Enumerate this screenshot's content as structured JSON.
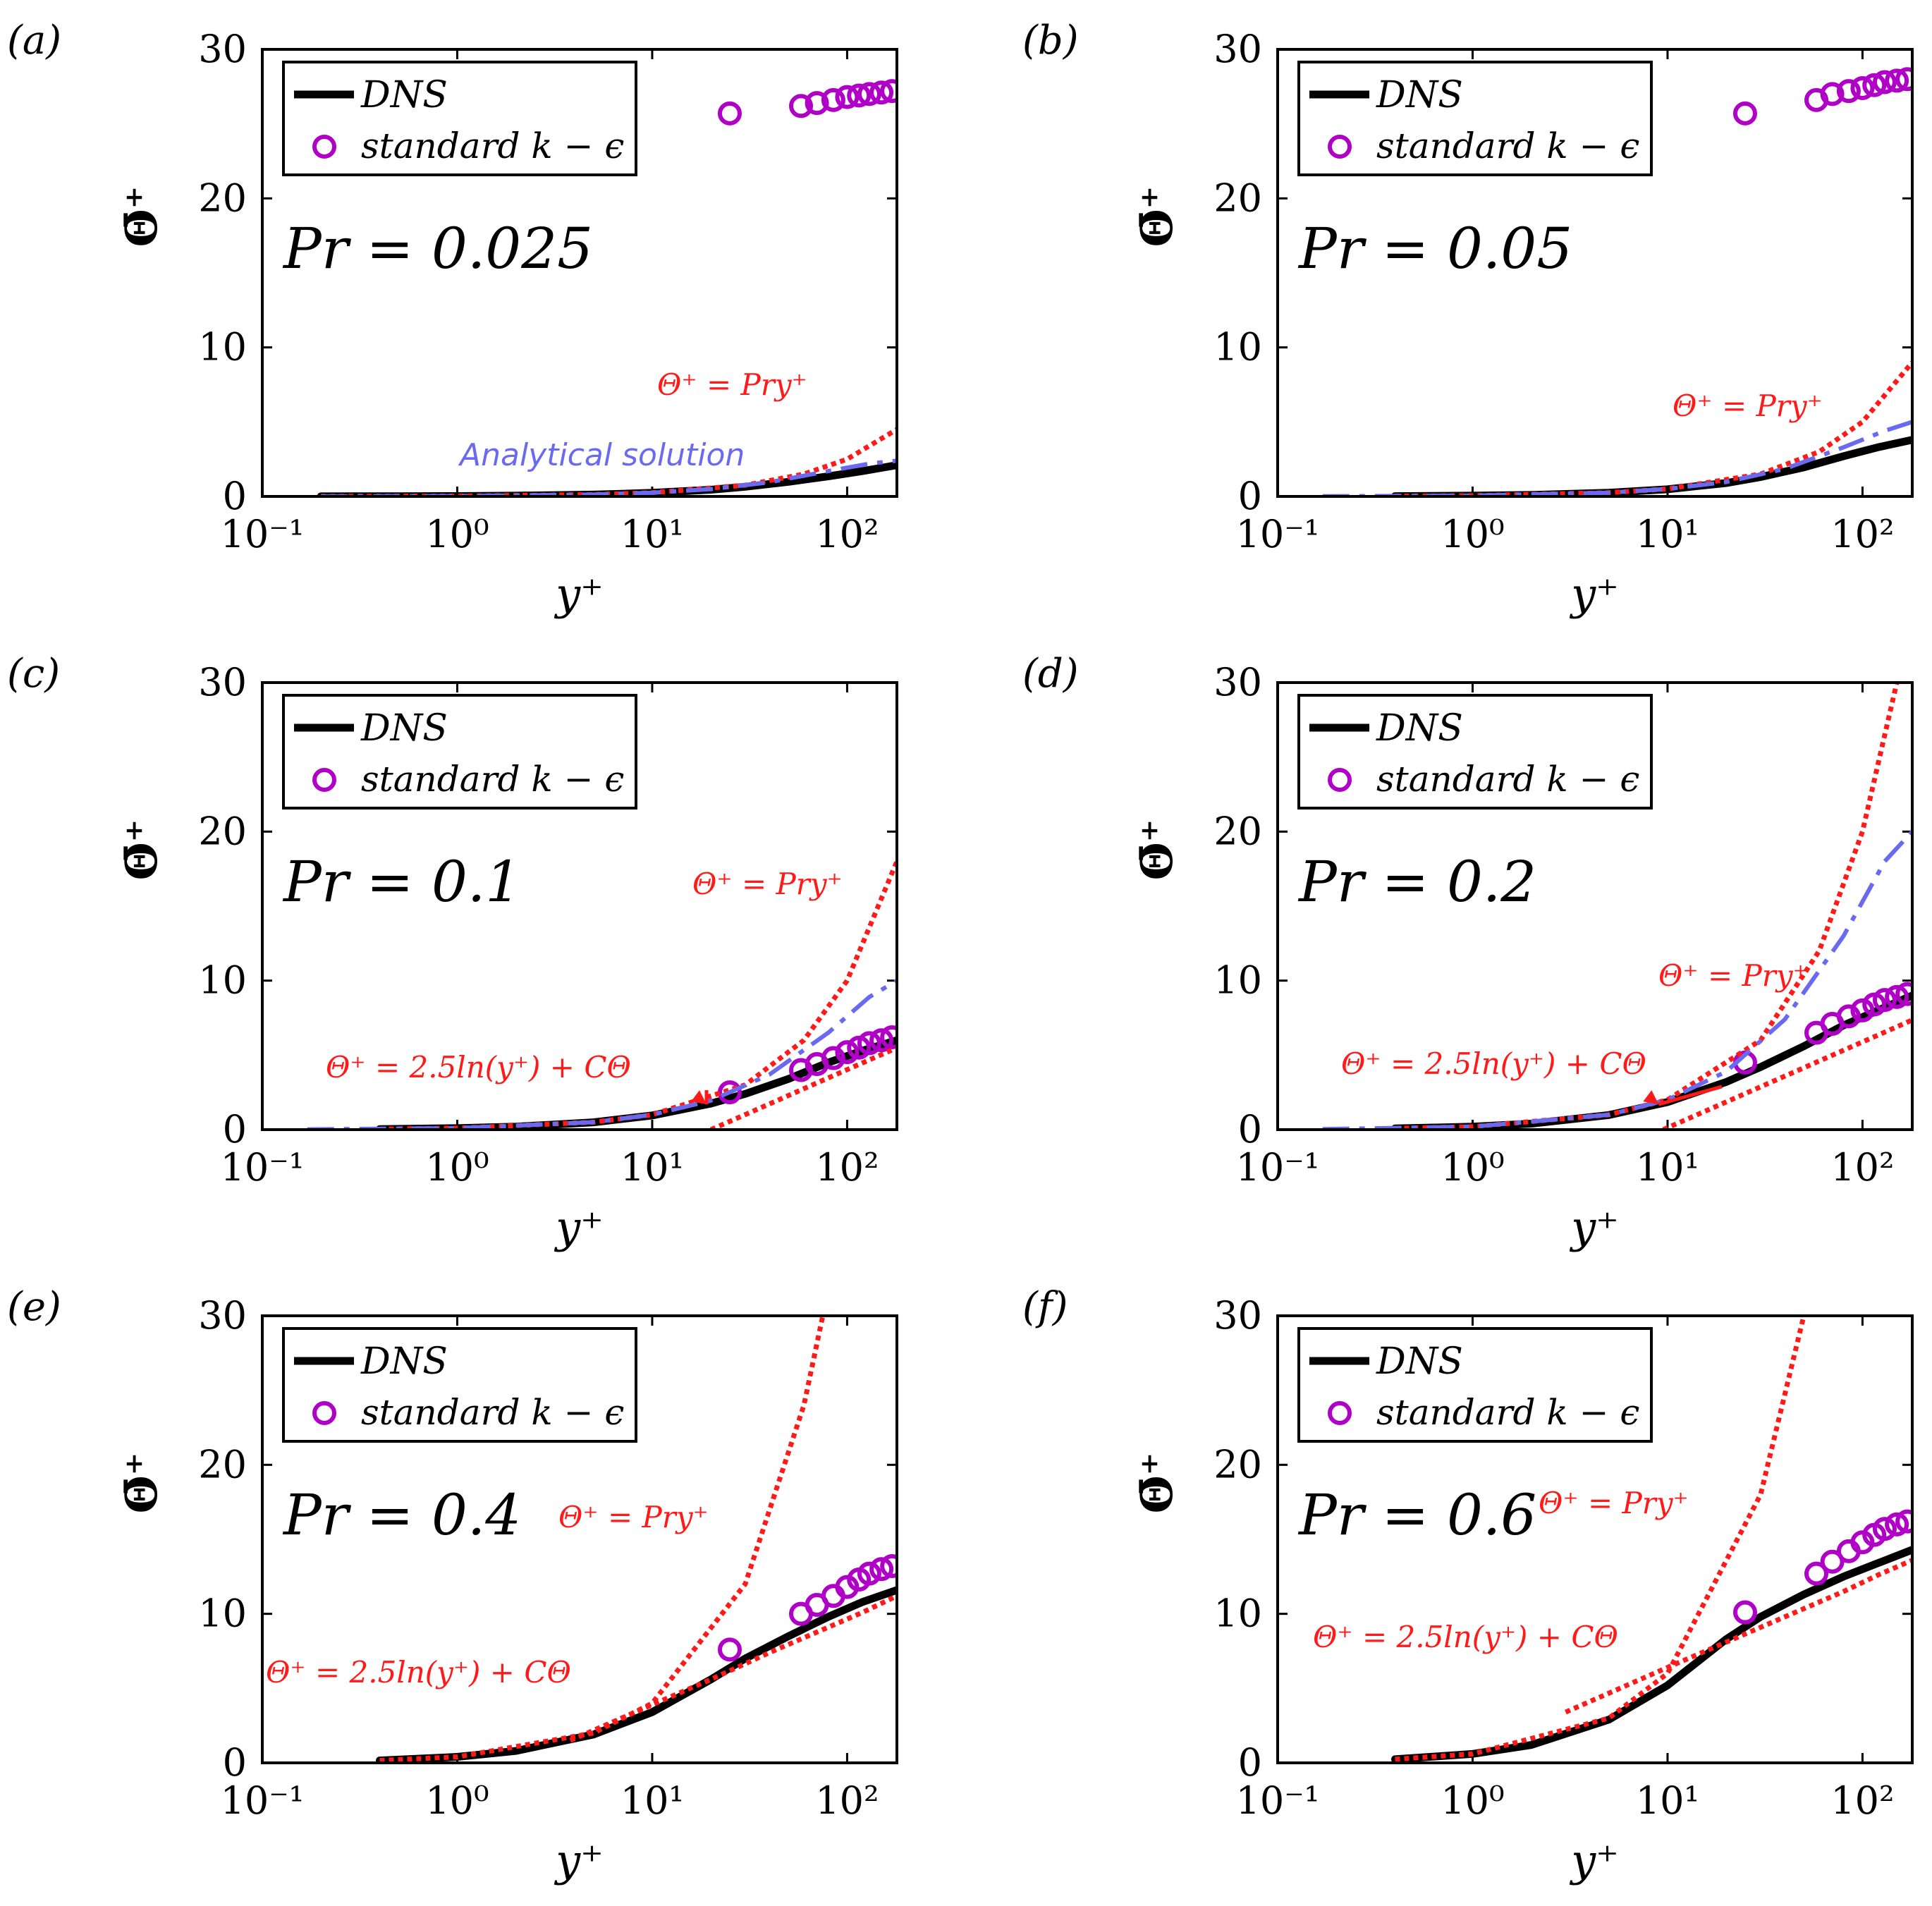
{
  "colors": {
    "dns": "#000000",
    "model": "#b000c8",
    "linear": "#ff1a1a",
    "log": "#ff1a1a",
    "analytical": "#6a6af0",
    "axis": "#000000",
    "annotation": "#ff1a1a",
    "analytical_label": "#6a6af0"
  },
  "chart_data": [
    {
      "type": "line",
      "panel_label": "(a)",
      "pr_label": "Pr = 0.025",
      "pr": 0.025,
      "xlabel": "y⁺",
      "ylabel": "Θ̄⁺",
      "xscale": "log",
      "xlim": [
        0.1,
        180
      ],
      "ylim": [
        0,
        30
      ],
      "xticks": [
        "10⁻¹",
        "10⁰",
        "10¹",
        "10²"
      ],
      "yticks": [
        "0",
        "10",
        "20",
        "30"
      ],
      "legend": [
        "DNS",
        "standard k − ϵ"
      ],
      "legend_position": "top-left",
      "annotations": {
        "linear": "Θ⁺ = Pry⁺",
        "analytical": "Analytical solution"
      },
      "series": [
        {
          "name": "DNS",
          "style": "solid",
          "x": [
            0.2,
            0.5,
            1,
            2,
            5,
            10,
            20,
            30,
            50,
            80,
            120,
            180
          ],
          "y": [
            0.005,
            0.0125,
            0.025,
            0.05,
            0.124,
            0.24,
            0.45,
            0.65,
            0.98,
            1.35,
            1.7,
            2.1
          ]
        },
        {
          "name": "standard k − ϵ",
          "style": "circles",
          "x": [
            25,
            58,
            70,
            85,
            100,
            115,
            130,
            150,
            170
          ],
          "y": [
            25.7,
            26.2,
            26.4,
            26.6,
            26.8,
            26.9,
            27,
            27.1,
            27.2
          ]
        },
        {
          "name": "Θ⁺ = Pry⁺",
          "style": "dotted",
          "x": [
            0.2,
            1,
            5,
            10,
            30,
            60,
            100,
            180
          ],
          "y": [
            0.005,
            0.025,
            0.125,
            0.25,
            0.75,
            1.5,
            2.5,
            4.5
          ]
        },
        {
          "name": "Analytical solution",
          "style": "dashed",
          "x": [
            0.2,
            1,
            5,
            10,
            20,
            40,
            80,
            130,
            180
          ],
          "y": [
            0.005,
            0.025,
            0.125,
            0.25,
            0.49,
            0.95,
            1.7,
            2.2,
            2.4
          ]
        }
      ]
    },
    {
      "type": "line",
      "panel_label": "(b)",
      "pr_label": "Pr = 0.05",
      "pr": 0.05,
      "xlabel": "y⁺",
      "ylabel": "Θ̄⁺",
      "xscale": "log",
      "xlim": [
        0.1,
        180
      ],
      "ylim": [
        0,
        30
      ],
      "xticks": [
        "10⁻¹",
        "10⁰",
        "10¹",
        "10²"
      ],
      "yticks": [
        "0",
        "10",
        "20",
        "30"
      ],
      "legend": [
        "DNS",
        "standard k − ϵ"
      ],
      "legend_position": "top-left",
      "annotations": {
        "linear": "Θ⁺ = Pry⁺"
      },
      "series": [
        {
          "name": "DNS",
          "style": "solid",
          "x": [
            0.4,
            1,
            2,
            5,
            10,
            20,
            30,
            50,
            80,
            120,
            180
          ],
          "y": [
            0.02,
            0.05,
            0.1,
            0.25,
            0.48,
            0.9,
            1.3,
            1.95,
            2.7,
            3.3,
            3.8
          ]
        },
        {
          "name": "standard k − ϵ",
          "style": "circles",
          "x": [
            25,
            58,
            70,
            85,
            100,
            115,
            130,
            150,
            170
          ],
          "y": [
            25.7,
            26.6,
            27,
            27.2,
            27.4,
            27.6,
            27.8,
            27.9,
            28
          ]
        },
        {
          "name": "Θ⁺ = Pry⁺",
          "style": "dotted",
          "x": [
            0.4,
            1,
            5,
            10,
            30,
            60,
            100,
            180
          ],
          "y": [
            0.02,
            0.05,
            0.25,
            0.5,
            1.5,
            3,
            5,
            9
          ]
        },
        {
          "name": "Analytical solution",
          "style": "dashed",
          "x": [
            0.17,
            1,
            5,
            10,
            20,
            40,
            80,
            130,
            180
          ],
          "y": [
            0.0085,
            0.05,
            0.25,
            0.5,
            0.97,
            1.85,
            3.3,
            4.4,
            5
          ]
        }
      ]
    },
    {
      "type": "line",
      "panel_label": "(c)",
      "pr_label": "Pr = 0.1",
      "pr": 0.1,
      "xlabel": "y⁺",
      "ylabel": "Θ̄⁺",
      "xscale": "log",
      "xlim": [
        0.1,
        180
      ],
      "ylim": [
        0,
        30
      ],
      "xticks": [
        "10⁻¹",
        "10⁰",
        "10¹",
        "10²"
      ],
      "yticks": [
        "0",
        "10",
        "20",
        "30"
      ],
      "legend": [
        "DNS",
        "standard k − ϵ"
      ],
      "legend_position": "top-left",
      "annotations": {
        "linear": "Θ⁺ = Pry⁺",
        "log": "Θ⁺ = 2.5ln(y⁺) + CΘ"
      },
      "series": [
        {
          "name": "DNS",
          "style": "solid",
          "x": [
            0.4,
            1,
            2,
            5,
            10,
            20,
            30,
            50,
            80,
            120,
            180
          ],
          "y": [
            0.04,
            0.1,
            0.2,
            0.49,
            0.95,
            1.75,
            2.4,
            3.4,
            4.5,
            5.3,
            6
          ]
        },
        {
          "name": "standard k − ϵ",
          "style": "circles",
          "x": [
            25,
            58,
            70,
            85,
            100,
            115,
            130,
            150,
            170
          ],
          "y": [
            2.5,
            4,
            4.4,
            4.8,
            5.2,
            5.5,
            5.8,
            6,
            6.2
          ]
        },
        {
          "name": "Θ⁺ = Pry⁺",
          "style": "dotted",
          "x": [
            0.4,
            1,
            5,
            10,
            30,
            60,
            100,
            180
          ],
          "y": [
            0.04,
            0.1,
            0.5,
            1,
            3,
            6,
            10,
            18
          ]
        },
        {
          "name": "Θ⁺ = 2.5ln(y⁺) + CΘ",
          "style": "dotted",
          "x": [
            20,
            30,
            50,
            80,
            120,
            180
          ],
          "y": [
            0,
            1.01,
            2.29,
            3.47,
            4.48,
            5.49
          ]
        },
        {
          "name": "Analytical solution",
          "style": "dashed",
          "x": [
            0.17,
            1,
            5,
            10,
            20,
            40,
            80,
            130,
            180
          ],
          "y": [
            0.017,
            0.1,
            0.5,
            1,
            1.95,
            3.7,
            6.5,
            8.9,
            10
          ]
        }
      ]
    },
    {
      "type": "line",
      "panel_label": "(d)",
      "pr_label": "Pr = 0.2",
      "pr": 0.2,
      "xlabel": "y⁺",
      "ylabel": "Θ̄⁺",
      "xscale": "log",
      "xlim": [
        0.1,
        180
      ],
      "ylim": [
        0,
        30
      ],
      "xticks": [
        "10⁻¹",
        "10⁰",
        "10¹",
        "10²"
      ],
      "yticks": [
        "0",
        "10",
        "20",
        "30"
      ],
      "legend": [
        "DNS",
        "standard k − ϵ"
      ],
      "legend_position": "top-left",
      "annotations": {
        "linear": "Θ⁺ = Pry⁺",
        "log": "Θ⁺ = 2.5ln(y⁺) + CΘ"
      },
      "series": [
        {
          "name": "DNS",
          "style": "solid",
          "x": [
            0.4,
            1,
            2,
            5,
            10,
            20,
            30,
            50,
            80,
            120,
            180
          ],
          "y": [
            0.08,
            0.2,
            0.4,
            0.98,
            1.85,
            3.2,
            4.2,
            5.6,
            7,
            8,
            9
          ]
        },
        {
          "name": "standard k − ϵ",
          "style": "circles",
          "x": [
            25,
            58,
            70,
            85,
            100,
            115,
            130,
            150,
            170
          ],
          "y": [
            4.5,
            6.5,
            7.1,
            7.6,
            8,
            8.4,
            8.7,
            8.9,
            9.1
          ]
        },
        {
          "name": "Θ⁺ = Pry⁺",
          "style": "dotted",
          "x": [
            0.4,
            1,
            5,
            10,
            30,
            60,
            100,
            150
          ],
          "y": [
            0.08,
            0.2,
            1,
            2,
            6,
            12,
            20,
            30
          ]
        },
        {
          "name": "Θ⁺ = 2.5ln(y⁺) + CΘ",
          "style": "dotted",
          "x": [
            9.5,
            20,
            40,
            80,
            120,
            180
          ],
          "y": [
            0,
            1.86,
            3.59,
            5.33,
            6.34,
            7.36
          ]
        },
        {
          "name": "Analytical solution",
          "style": "dashed",
          "x": [
            0.17,
            1,
            5,
            10,
            20,
            40,
            80,
            130,
            180
          ],
          "y": [
            0.034,
            0.2,
            1,
            2,
            3.9,
            7.4,
            13,
            18,
            20
          ]
        }
      ]
    },
    {
      "type": "line",
      "panel_label": "(e)",
      "pr_label": "Pr = 0.4",
      "pr": 0.4,
      "xlabel": "y⁺",
      "ylabel": "Θ̄⁺",
      "xscale": "log",
      "xlim": [
        0.1,
        180
      ],
      "ylim": [
        0,
        30
      ],
      "xticks": [
        "10⁻¹",
        "10⁰",
        "10¹",
        "10²"
      ],
      "yticks": [
        "0",
        "10",
        "20",
        "30"
      ],
      "legend": [
        "DNS",
        "standard k − ϵ"
      ],
      "legend_position": "top-left",
      "annotations": {
        "linear": "Θ⁺ = Pry⁺",
        "log": "Θ⁺ = 2.5ln(y⁺) + CΘ"
      },
      "series": [
        {
          "name": "DNS",
          "style": "solid",
          "x": [
            0.4,
            1,
            2,
            5,
            10,
            20,
            30,
            50,
            80,
            120,
            180
          ],
          "y": [
            0.16,
            0.4,
            0.8,
            1.9,
            3.4,
            5.6,
            7,
            8.5,
            9.8,
            10.8,
            11.6
          ]
        },
        {
          "name": "standard k − ϵ",
          "style": "circles",
          "x": [
            25,
            58,
            70,
            85,
            100,
            115,
            130,
            150,
            170
          ],
          "y": [
            7.6,
            10,
            10.6,
            11.2,
            11.8,
            12.3,
            12.7,
            13,
            13.2
          ]
        },
        {
          "name": "Θ⁺ = Pry⁺",
          "style": "dotted",
          "x": [
            0.4,
            1,
            5,
            10,
            30,
            60,
            75
          ],
          "y": [
            0.16,
            0.4,
            2,
            4,
            12,
            24,
            30
          ]
        },
        {
          "name": "Θ⁺ = 2.5ln(y⁺) + CΘ",
          "style": "dotted",
          "x": [
            3.8,
            10,
            20,
            40,
            80,
            120,
            180
          ],
          "y": [
            1.5,
            3.9,
            5.6,
            7.4,
            9.1,
            10.1,
            11.2
          ]
        }
      ]
    },
    {
      "type": "line",
      "panel_label": "(f)",
      "pr_label": "Pr = 0.6",
      "pr": 0.6,
      "xlabel": "y⁺",
      "ylabel": "Θ̄⁺",
      "xscale": "log",
      "xlim": [
        0.1,
        180
      ],
      "ylim": [
        0,
        30
      ],
      "xticks": [
        "10⁻¹",
        "10⁰",
        "10¹",
        "10²"
      ],
      "yticks": [
        "0",
        "10",
        "20",
        "30"
      ],
      "legend": [
        "DNS",
        "standard k − ϵ"
      ],
      "legend_position": "top-left",
      "annotations": {
        "linear": "Θ⁺ = Pry⁺",
        "log": "Θ⁺ = 2.5ln(y⁺) + CΘ"
      },
      "series": [
        {
          "name": "DNS",
          "style": "solid",
          "x": [
            0.4,
            1,
            2,
            5,
            10,
            20,
            30,
            50,
            80,
            120,
            180
          ],
          "y": [
            0.24,
            0.6,
            1.2,
            2.9,
            5.2,
            8.3,
            9.8,
            11.3,
            12.5,
            13.4,
            14.3
          ]
        },
        {
          "name": "standard k − ϵ",
          "style": "circles",
          "x": [
            25,
            58,
            70,
            85,
            100,
            115,
            130,
            150,
            170
          ],
          "y": [
            10.1,
            12.7,
            13.5,
            14.2,
            14.8,
            15.3,
            15.7,
            16,
            16.2
          ]
        },
        {
          "name": "Θ⁺ = Pry⁺",
          "style": "dotted",
          "x": [
            0.4,
            1,
            5,
            10,
            30,
            50
          ],
          "y": [
            0.24,
            0.6,
            3,
            6,
            18,
            30
          ]
        },
        {
          "name": "Θ⁺ = 2.5ln(y⁺) + CΘ",
          "style": "dotted",
          "x": [
            3,
            10,
            20,
            40,
            80,
            120,
            180
          ],
          "y": [
            3.4,
            6.4,
            8.1,
            9.8,
            11.5,
            12.6,
            13.6
          ]
        }
      ]
    }
  ]
}
